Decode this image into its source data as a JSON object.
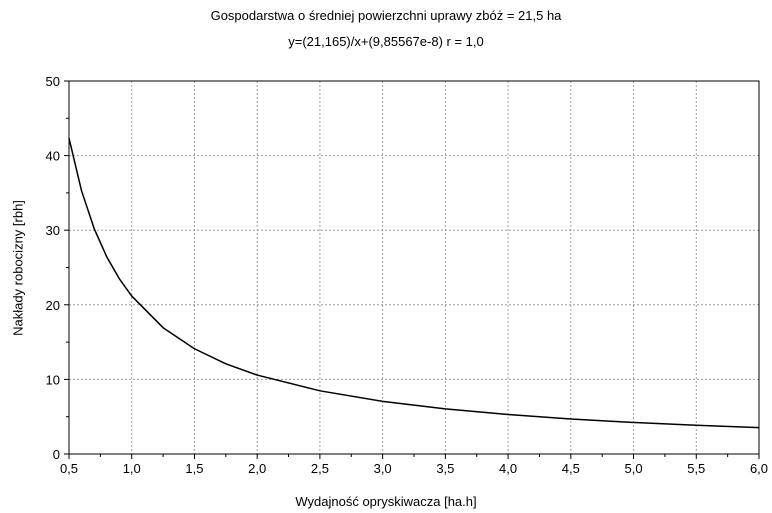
{
  "chart_data": {
    "type": "line",
    "title": "Gospodarstwa o średniej powierzchni uprawy zbóż = 21,5 ha",
    "subtitle": "y=(21,165)/x+(9,85567e-8) r = 1,0",
    "xlabel": "Wydajność opryskiwacza [ha.h]",
    "ylabel": "Nakłady robocizny [rbh]",
    "xlim": [
      0.5,
      6.0
    ],
    "ylim": [
      0,
      50
    ],
    "x_ticks": [
      "0,5",
      "1,0",
      "1,5",
      "2,0",
      "2,5",
      "3,0",
      "3,5",
      "4,0",
      "4,5",
      "5,0",
      "5,5",
      "6,0"
    ],
    "y_ticks": [
      "0",
      "10",
      "20",
      "30",
      "40",
      "50"
    ],
    "grid": true,
    "series": [
      {
        "x": [
          0.5,
          0.6,
          0.7,
          0.8,
          0.9,
          1.0,
          1.25,
          1.5,
          1.75,
          2.0,
          2.5,
          3.0,
          3.5,
          4.0,
          4.5,
          5.0,
          5.5,
          6.0
        ],
        "values": [
          42.33,
          35.28,
          30.24,
          26.46,
          23.52,
          21.17,
          16.93,
          14.11,
          12.09,
          10.58,
          8.47,
          7.06,
          6.05,
          5.29,
          4.7,
          4.23,
          3.85,
          3.53
        ],
        "color": "#000000"
      }
    ]
  }
}
